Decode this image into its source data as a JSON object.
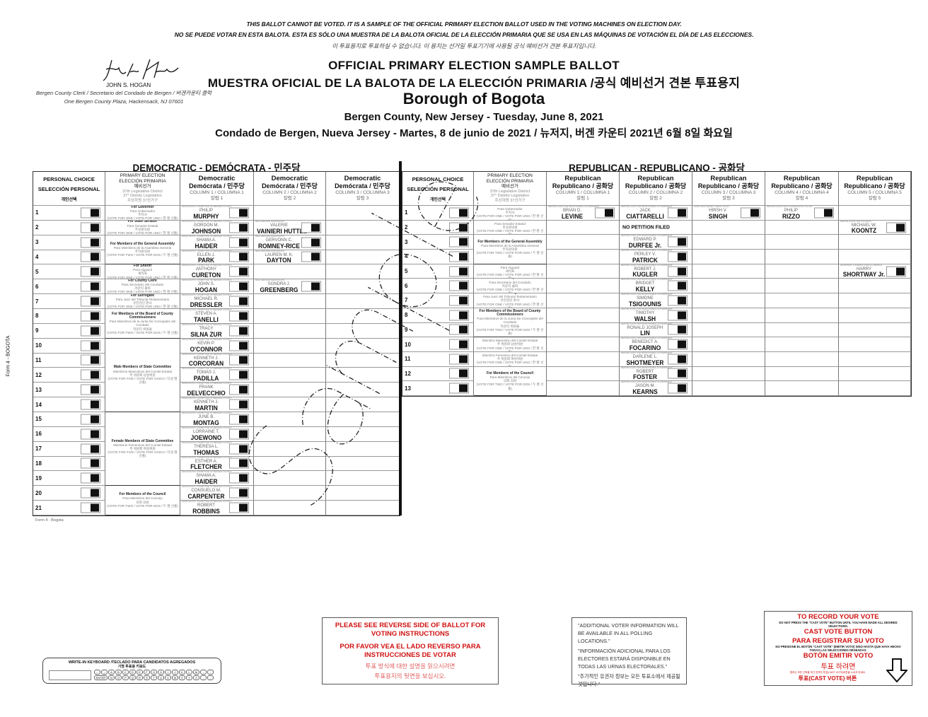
{
  "notices": [
    "THIS BALLOT CANNOT BE VOTED. IT IS A SAMPLE OF THE OFFICIAL PRIMARY ELECTION BALLOT USED IN THE VOTING MACHINES ON ELECTION DAY.",
    "NO SE PUEDE VOTAR EN ESTA BALOTA. ESTA ES SÓLO UNA MUESTRA DE LA BALOTA OFICIAL DE LA ELECCIÓN PRIMARIA QUE SE USA EN LAS MÁQUINAS DE VOTACIÓN  EL DÍA DE LAS ELECCIONES.",
    "이 투표용지로 투표하실 수 없습니다. 이 용지는 선거일 투표기기에 사용될 공식 예비선거 견본 투표지입니다."
  ],
  "clerk": {
    "signature": "John S. Hogan",
    "name": "JOHN S. HOGAN",
    "title": "Bergen County Clerk / Secretario del Condado de Bergen / 버겐카운티 클럭",
    "address": "One Bergen County Plaza, Hackensack, NJ 07601"
  },
  "titles": {
    "line1": "OFFICIAL PRIMARY ELECTION SAMPLE BALLOT",
    "line2": "MUESTRA OFICIAL DE LA BALOTA DE LA ELECCIÓN PRIMARIA /공식 예비선거 견본 투표용지",
    "borough": "Borough of Bogota",
    "date_en": "Bergen County, New Jersey - Tuesday, June 8, 2021",
    "date_es": "Condado de Bergen, Nueva Jersey - Martes, 8 de junio de 2021 / 뉴저지, 버겐 카운티 2021년 6월 8일 화요일"
  },
  "side_label": "Form 4 - BOGOTA",
  "footer_label": "Form 4 - Bogota",
  "watermark": "Sample",
  "header_common": {
    "personal": [
      "PERSONAL CHOICE",
      "SELECCIÓN PERSONAL",
      "개인선택"
    ],
    "office": [
      "PRIMARY ELECTION",
      "ELECCIÓN PRIMARIA",
      "예비선거"
    ],
    "office_gray": [
      "37th Legislative District",
      "37° Distrito Legislativo",
      "주상하원 37선거구"
    ]
  },
  "democratic": {
    "title": "DEMOCRATIC - DEMÓCRATA - 민주당",
    "row_numbers": [
      "1",
      "2",
      "3",
      "4",
      "5",
      "6",
      "7",
      "8",
      "9",
      "10",
      "11",
      "12",
      "13",
      "14",
      "15",
      "16",
      "17",
      "18",
      "19",
      "20",
      "21"
    ],
    "columns": [
      {
        "party": "Democratic",
        "party2": "Demócrata / 민주당",
        "column": "COLUMN 1 / COLUMNA 1",
        "korean": "칼럼 1"
      },
      {
        "party": "Democratic",
        "party2": "Demócrata / 민주당",
        "column": "COLUMN 2 / COLUMNA 2",
        "korean": "칼럼 2"
      },
      {
        "party": "Democratic",
        "party2": "Demócrata / 민주당",
        "column": "COLUMN 3 / COLUMNA 3",
        "korean": "칼럼 3"
      }
    ],
    "offices": [
      {
        "start": 1,
        "span": 1,
        "lines": [
          "For Governor",
          "Para Gobernador",
          "주지사",
          "(VOTE FOR ONE / VOTE POR UNO / 한 명 선출)"
        ]
      },
      {
        "start": 2,
        "span": 1,
        "lines": [
          "For State Senator",
          "Para Senador Estatal",
          "주상원의원",
          "(VOTE FOR ONE / VOTE POR UNO / 한 명 선출)"
        ]
      },
      {
        "start": 3,
        "span": 2,
        "lines": [
          "For Members of the General Assembly",
          "Para Miembros de la Asamblea General",
          "주하원의원",
          "(VOTE FOR TWO / VOTE POR DOS / 두 명 선출)"
        ]
      },
      {
        "start": 5,
        "span": 1,
        "lines": [
          "For Sheriff",
          "Para Alguacil",
          "셰리프",
          "(VOTE FOR ONE / VOTE POR UNO / 한 명 선출)"
        ]
      },
      {
        "start": 6,
        "span": 1,
        "lines": [
          "For County Clerk",
          "Para Secretario del Condado",
          "카운티 클럭",
          "(VOTE FOR ONE / VOTE POR UNO / 한 명 선출)"
        ]
      },
      {
        "start": 7,
        "span": 1,
        "lines": [
          "For Surrogate",
          "Para Juez del Tribunal Testamentario",
          "유언검인 판사",
          "(VOTE FOR ONE / VOTE POR UNO / 한 명 선출)"
        ]
      },
      {
        "start": 8,
        "span": 2,
        "lines": [
          "For Members of the Board of County Commissioners",
          "Para Miembros de la Junta De Concejales del Condado",
          "카운티 위원들",
          "(VOTE FOR TWO / VOTE POR DOS / 두 명 선출)"
        ]
      },
      {
        "start": 10,
        "span": 5,
        "lines": [
          "Male Members of State Committee",
          "Miembros Masculinos del Comité Estatal",
          "주 위원회 남성위원",
          "(VOTE FOR FIVE / VOTE POR CINCO / 다섯 명 선출)"
        ]
      },
      {
        "start": 15,
        "span": 5,
        "lines": [
          "Female Members of State Committee",
          "Miembros Femeninos del Comité Estatal",
          "주 위원회 여성위원",
          "(VOTE FOR FIVE / VOTE POR CINCO / 다섯 명 선출)"
        ]
      },
      {
        "start": 20,
        "span": 2,
        "lines": [
          "For Members of the Council",
          "Para Miembros del Concejo",
          "의회 의원",
          "(VOTE FOR TWO / VOTE POR DOS / 두 명 선출)"
        ]
      }
    ],
    "candidates": [
      {
        "row": 1,
        "col": 1,
        "slogan": "DEMOCRATIC COMMITTEE OF BERGEN COUNTY",
        "first": "PHILIP",
        "last": "MURPHY"
      },
      {
        "row": 2,
        "col": 1,
        "slogan": "DEMOCRATIC COMMITTEE OF BERGEN COUNTY",
        "first": "GORDON M.",
        "last": "JOHNSON"
      },
      {
        "row": 2,
        "col": 2,
        "slogan": "REAL BERGEN DEMOCRATS",
        "first": "VALERIE",
        "last": "VAINIERI HUTTLE"
      },
      {
        "row": 3,
        "col": 1,
        "slogan": "DEMOCRATIC COMMITTEE OF BERGEN COUNTY",
        "first": "SHAMA A.",
        "last": "HAIDER"
      },
      {
        "row": 3,
        "col": 2,
        "slogan": "REAL BERGEN DEMOCRATS",
        "first": "GERVONN C.",
        "last": "ROMNEY-RICE"
      },
      {
        "row": 4,
        "col": 1,
        "slogan": "DEMOCRATIC COMMITTEE OF BERGEN COUNTY",
        "first": "ELLEN J.",
        "last": "PARK"
      },
      {
        "row": 4,
        "col": 2,
        "slogan": "REAL BERGEN DEMOCRATS",
        "first": "LAUREN M. K.",
        "last": "DAYTON"
      },
      {
        "row": 5,
        "col": 1,
        "slogan": "DEMOCRATIC COMMITTEE OF BERGEN COUNTY",
        "first": "ANTHONY",
        "last": "CURETON"
      },
      {
        "row": 6,
        "col": 1,
        "slogan": "DEMOCRATIC COMMITTEE OF BERGEN COUNTY",
        "first": "JOHN S.",
        "last": "HOGAN"
      },
      {
        "row": 6,
        "col": 2,
        "slogan": "REAL BERGEN DEMOCRATS",
        "first": "SONDRA J.",
        "last": "GREENBERG"
      },
      {
        "row": 7,
        "col": 1,
        "slogan": "DEMOCRATIC COMMITTEE OF BERGEN COUNTY",
        "first": "MICHAEL R.",
        "last": "DRESSLER"
      },
      {
        "row": 8,
        "col": 1,
        "slogan": "DEMOCRATIC COMMITTEE OF BERGEN COUNTY",
        "first": "STEVEN A.",
        "last": "TANELLI"
      },
      {
        "row": 9,
        "col": 1,
        "slogan": "DEMOCRATIC COMMITTEE OF BERGEN COUNTY",
        "first": "TRACY",
        "last": "SILNA ZUR"
      },
      {
        "row": 10,
        "col": 1,
        "slogan": "DEMOCRATIC COMMITTEE OF BERGEN COUNTY",
        "first": "KEVIN P.",
        "last": "O'CONNOR"
      },
      {
        "row": 11,
        "col": 1,
        "slogan": "DEMOCRATIC COMMITTEE OF BERGEN COUNTY",
        "first": "KENNETH J.",
        "last": "CORCORAN"
      },
      {
        "row": 12,
        "col": 1,
        "slogan": "DEMOCRATIC COMMITTEE OF BERGEN COUNTY",
        "first": "TOMAS J.",
        "last": "PADILLA"
      },
      {
        "row": 13,
        "col": 1,
        "slogan": "DEMOCRATIC COMMITTEE OF BERGEN COUNTY",
        "first": "FRANK",
        "last": "DELVECCHIO"
      },
      {
        "row": 14,
        "col": 1,
        "slogan": "DEMOCRATIC COMMITTEE OF BERGEN COUNTY",
        "first": "KENNETH J.",
        "last": "MARTIN"
      },
      {
        "row": 15,
        "col": 1,
        "slogan": "DEMOCRATIC COMMITTEE OF BERGEN COUNTY",
        "first": "JUNE B.",
        "last": "MONTAG"
      },
      {
        "row": 16,
        "col": 1,
        "slogan": "DEMOCRATIC COMMITTEE OF BERGEN COUNTY",
        "first": "LORRAINE T.",
        "last": "JOEWONO"
      },
      {
        "row": 17,
        "col": 1,
        "slogan": "DEMOCRATIC COMMITTEE OF BERGEN COUNTY",
        "first": "THERESA L.",
        "last": "THOMAS"
      },
      {
        "row": 18,
        "col": 1,
        "slogan": "DEMOCRATIC COMMITTEE OF BERGEN COUNTY",
        "first": "ESTHER A.",
        "last": "FLETCHER"
      },
      {
        "row": 19,
        "col": 1,
        "slogan": "DEMOCRATIC COMMITTEE OF BERGEN COUNTY",
        "first": "SHAMA A.",
        "last": "HAIDER"
      },
      {
        "row": 20,
        "col": 1,
        "slogan": "DEMOCRATIC COMMITTEE OF BERGEN COUNTY",
        "first": "CONSUELO M.",
        "last": "CARPENTER"
      },
      {
        "row": 21,
        "col": 1,
        "slogan": "DEMOCRATIC COMMITTEE OF BERGEN COUNTY",
        "first": "ROBERT",
        "last": "ROBBINS"
      }
    ]
  },
  "republican": {
    "title": "REPUBLICAN - REPUBLICANO - 공화당",
    "row_numbers": [
      "1",
      "2",
      "3",
      "4",
      "5",
      "6",
      "7",
      "8",
      "9",
      "10",
      "11",
      "12",
      "13"
    ],
    "columns": [
      {
        "party": "Republican",
        "party2": "Republicano / 공화당",
        "column": "COLUMN 1 / COLUMNA 1",
        "korean": "칼럼 1"
      },
      {
        "party": "Republican",
        "party2": "Republicano / 공화당",
        "column": "COLUMN 2 / COLUMNA 2",
        "korean": "칼럼 2"
      },
      {
        "party": "Republican",
        "party2": "Republicano / 공화당",
        "column": "COLUMN 3 / COLUMNA 3",
        "korean": "칼럼 3"
      },
      {
        "party": "Republican",
        "party2": "Republicano / 공화당",
        "column": "COLUMN 4 / COLUMNA 4",
        "korean": "칼럼 4"
      },
      {
        "party": "Republican",
        "party2": "Republicano / 공화당",
        "column": "COLUMN 5 / COLUMNA 5",
        "korean": "칼럼 5"
      }
    ],
    "offices": [
      {
        "start": 1,
        "span": 1,
        "lines": [
          "For Governor",
          "Para Gobernador",
          "주지사",
          "(VOTE FOR ONE / VOTE POR UNO / 한 명 선출)"
        ]
      },
      {
        "start": 2,
        "span": 1,
        "lines": [
          "For State Senator",
          "Para Senador Estatal",
          "주상원의원",
          "(VOTE FOR ONE / VOTE POR UNO / 한 명 선출)"
        ]
      },
      {
        "start": 3,
        "span": 2,
        "lines": [
          "For Members of the General Assembly",
          "Para Miembros de la Asamblea General",
          "주하원의원",
          "(VOTE FOR TWO / VOTE POR DOS / 두 명 선출)"
        ]
      },
      {
        "start": 5,
        "span": 1,
        "lines": [
          "For Sheriff",
          "Para Alguacil",
          "셰리프",
          "(VOTE FOR ONE / VOTE POR UNO / 한 명 선출)"
        ]
      },
      {
        "start": 6,
        "span": 1,
        "lines": [
          "For County Clerk",
          "Para Secretario del Condado",
          "카운티 클럭",
          "(VOTE FOR ONE / VOTE POR UNO / 한 명 선출)"
        ]
      },
      {
        "start": 7,
        "span": 1,
        "lines": [
          "For Surrogate",
          "Para Juez del Tribunal Testamentario",
          "유언검인 판사",
          "(VOTE FOR ONE / VOTE POR UNO / 한 명 선출)"
        ]
      },
      {
        "start": 8,
        "span": 2,
        "lines": [
          "For Members of the Board of County Commissioners",
          "Para Miembros de la Junta De Concejales del Condado",
          "카운티 위원들",
          "(VOTE FOR TWO / VOTE POR DOS / 두 명 선출)"
        ]
      },
      {
        "start": 10,
        "span": 1,
        "lines": [
          "Male Member of State Committee",
          "Miembro Masculino del Comité Estatal",
          "주 위원회 남성위원",
          "(VOTE FOR ONE / VOTE POR UNO / 한 명 선출)"
        ]
      },
      {
        "start": 11,
        "span": 1,
        "lines": [
          "Female Member of State Committee",
          "Miembro Femenino del Comité Estatal",
          "주 위원회 여성위원",
          "(VOTE FOR ONE / VOTE POR UNO / 한 명 선출)"
        ]
      },
      {
        "start": 12,
        "span": 2,
        "lines": [
          "For Members of the Council",
          "Para Miembros del Concejo",
          "의회 의원",
          "(VOTE FOR TWO / VOTE POR DOS / 두 명 선출)"
        ]
      }
    ],
    "candidates": [
      {
        "row": 1,
        "col": 1,
        "slogan": "REPUBLICANS FOR RESPONSIBLE GOVERNMENT",
        "first": "BRIAN D.",
        "last": "LEVINE"
      },
      {
        "row": 1,
        "col": 2,
        "slogan": "REPUBLICANS FOR RESPONSIBLE GOVERNMENT",
        "first": "JACK",
        "last": "CIATTARELLI"
      },
      {
        "row": 1,
        "col": 3,
        "slogan": "MAKE NEW JERSEY GREAT AGAIN",
        "first": "HIRSH V.",
        "last": "SINGH"
      },
      {
        "row": 1,
        "col": 4,
        "slogan": "REPUBLICANS FOR CONSERVATIVE VALUES",
        "first": "PHILIP",
        "last": "RIZZO"
      },
      {
        "row": 2,
        "col": 2,
        "no_petition": "NO PETITION FILED"
      },
      {
        "row": 2,
        "col": 5,
        "slogan": "REPUBLICANS FOR SUCCESS",
        "first": "MICHAEL W.",
        "last": "KOONTZ"
      },
      {
        "row": 3,
        "col": 2,
        "slogan": "REPUBLICANS FOR RESPONSIBLE GOVERNMENT",
        "first": "EDWARD P.",
        "last": "DURFEE Jr."
      },
      {
        "row": 4,
        "col": 2,
        "slogan": "REPUBLICANS FOR RESPONSIBLE GOVERNMENT",
        "first": "PERLEY V.",
        "last": "PATRICK"
      },
      {
        "row": 5,
        "col": 2,
        "slogan": "REPUBLICANS FOR RESPONSIBLE GOVERNMENT",
        "first": "ROBERT J.",
        "last": "KUGLER"
      },
      {
        "row": 5,
        "col": 5,
        "slogan": "SHORTWAY 4 SHERIFF FOR ALL PEOPLE",
        "first": "HARRY",
        "last": "SHORTWAY Jr."
      },
      {
        "row": 6,
        "col": 2,
        "slogan": "REPUBLICANS FOR RESPONSIBLE GOVERNMENT",
        "first": "BRIDGET",
        "last": "KELLY"
      },
      {
        "row": 7,
        "col": 2,
        "slogan": "REPUBLICANS FOR RESPONSIBLE GOVERNMENT",
        "first": "SIMONE",
        "last": "TSIGOUNIS"
      },
      {
        "row": 8,
        "col": 2,
        "slogan": "REPUBLICANS FOR RESPONSIBLE GOVERNMENT",
        "first": "TIMOTHY",
        "last": "WALSH"
      },
      {
        "row": 9,
        "col": 2,
        "slogan": "REPUBLICANS FOR RESPONSIBLE GOVERNMENT",
        "first": "RONALD JOSEPH",
        "last": "LIN"
      },
      {
        "row": 10,
        "col": 2,
        "slogan": "REPUBLICANS FOR RESPONSIBLE GOVERNMENT",
        "first": "BENEDICT A.",
        "last": "FOCARINO"
      },
      {
        "row": 11,
        "col": 2,
        "slogan": "REPUBLICANS FOR RESPONSIBLE GOVERNMENT",
        "first": "DARLENE L.",
        "last": "SHOTMEYER"
      },
      {
        "row": 12,
        "col": 2,
        "slogan": "REPUBLICANS FOR RESPONSIBLE GOVERNMENT",
        "first": "ROBERT",
        "last": "FOSTER"
      },
      {
        "row": 13,
        "col": 2,
        "slogan": "REPUBLICANS FOR RESPONSIBLE GOVERNMENT",
        "first": "JASON M.",
        "last": "KEARNS"
      }
    ]
  },
  "instructions": {
    "en": [
      "PLEASE SEE REVERSE SIDE OF BALLOT FOR",
      "VOTING INSTRUCTIONS"
    ],
    "es": [
      "POR FAVOR VEA EL LADO REVERSO PARA",
      "INSTRUCCIONES DE VOTAR"
    ],
    "ko": [
      "투표 방식에 대한 설명을 읽으시려면",
      "투표용지의 뒷면을 보십시오."
    ]
  },
  "additional_info": [
    "\"ADDITIONAL VOTER INFORMATION WILL BE AVAILABLE IN ALL POLLING LOCATIONS.\"",
    "\"INFORMACIÓN ADICIONAL PARA LOS ELECTORES ESTARÁ DISPONIBLE EN TODAS LAS URNAS ELECTORALES.\"",
    "\"추가적인 유권자 정보는 모든 투표소에서 제공될 것입니다.\""
  ],
  "cast_vote": {
    "h1": "TO RECORD YOUR VOTE",
    "s1": "DO NOT PRESS THE \"CAST VOTE\" BUTTON UNTIL YOU HAVE MADE ALL DESIRED SELECTIONS.",
    "h2": "CAST VOTE BUTTON",
    "h3": "PARA REGISTRAR SU VOTO",
    "s2": "NO PRESIONE EL BOTÓN \"CAST VOTE\" (EMITIR VOTO) SINO HASTA QUE HAYA HECHO TODAS LAS SELECCIONES DESEADAS.",
    "h4": "BOTÓN EMITIR VOTO",
    "k1": "투표 하려면",
    "s3": "원하는 모든 선택을 하기 전까지 투표(CAST VOTE)버튼을 누르지 마세요",
    "k2": "투표(CAST VOTE) 버튼",
    "icon": "down-arrow-icon"
  },
  "keyboard": {
    "title": "WRITE-IN KEYBOARD /TECLADO PARA CANDIDATOS AGREGADOS",
    "korean": "기명 투표용 키보드",
    "row1": [
      "←",
      "→",
      "A",
      "B",
      "C",
      "D",
      "E",
      "F",
      "G",
      "H",
      "I",
      "J",
      "K",
      "L",
      "M",
      "-",
      "-"
    ],
    "enter": "ENTER",
    "row2": [
      "N",
      "O",
      "P",
      "Q",
      "R",
      "S",
      "T",
      "U",
      "V",
      "W",
      "X",
      "Y",
      "Z",
      "-",
      "-"
    ]
  }
}
